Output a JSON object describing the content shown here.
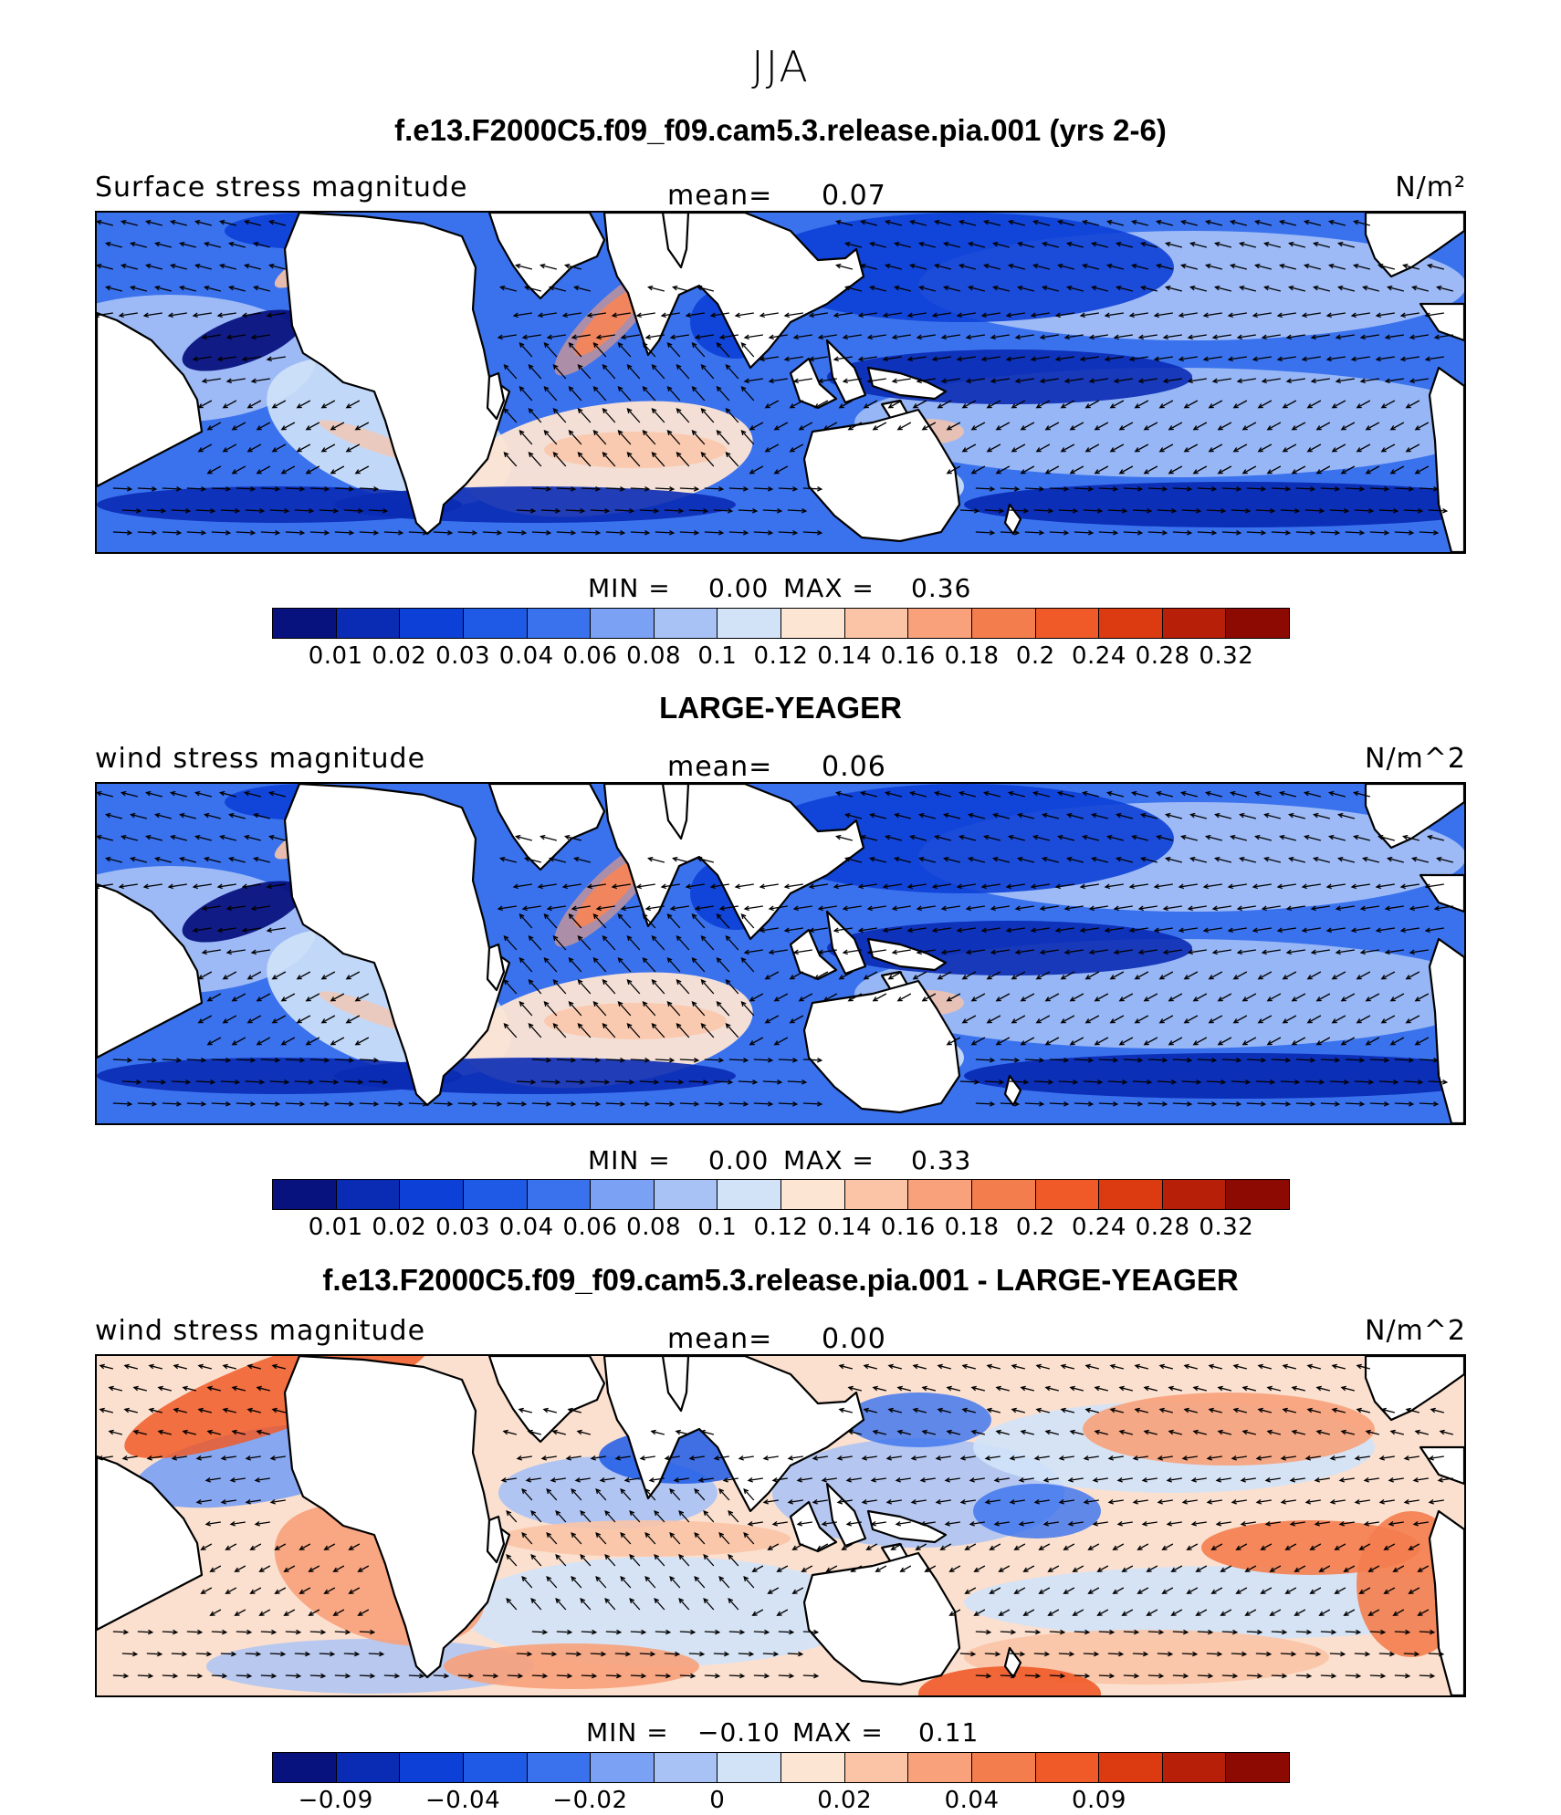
{
  "season": "JJA",
  "palette_stress": [
    "#08127f",
    "#0a2bb4",
    "#0d40d6",
    "#1f5ae6",
    "#3a72ee",
    "#7aa1f4",
    "#a8c2f6",
    "#d2e3f8",
    "#fde5d4",
    "#fbc4a6",
    "#f8a17a",
    "#f47d4e",
    "#ef5a28",
    "#dc3a10",
    "#b81f08",
    "#8c0a02"
  ],
  "palette_diff": [
    "#08127f",
    "#0a2bb4",
    "#0d40d6",
    "#1f5ae6",
    "#3a72ee",
    "#7aa1f4",
    "#a8c2f6",
    "#d2e3f8",
    "#fde5d4",
    "#fbc4a6",
    "#f8a17a",
    "#f47d4e",
    "#ef5a28",
    "#dc3a10",
    "#b81f08",
    "#8c0a02"
  ],
  "panels": [
    {
      "title": "f.e13.F2000C5.f09_f09.cam5.3.release.pia.001 (yrs 2-6)",
      "left": "Surface stress magnitude",
      "mean_label": "mean=",
      "mean_value": "0.07",
      "units": "N/m²",
      "min_label": "MIN =",
      "min_value": "0.00",
      "max_label": "MAX =",
      "max_value": "0.36",
      "ticks": [
        "0.01",
        "0.02",
        "0.03",
        "0.04",
        "0.06",
        "0.08",
        "0.1",
        "0.12",
        "0.14",
        "0.16",
        "0.18",
        "0.2",
        "0.24",
        "0.28",
        "0.32"
      ]
    },
    {
      "title": "LARGE-YEAGER",
      "left": "wind stress magnitude",
      "mean_label": "mean=",
      "mean_value": "0.06",
      "units": "N/m^2",
      "min_label": "MIN =",
      "min_value": "0.00",
      "max_label": "MAX =",
      "max_value": "0.33",
      "ticks": [
        "0.01",
        "0.02",
        "0.03",
        "0.04",
        "0.06",
        "0.08",
        "0.1",
        "0.12",
        "0.14",
        "0.16",
        "0.18",
        "0.2",
        "0.24",
        "0.28",
        "0.32"
      ]
    },
    {
      "title": "f.e13.F2000C5.f09_f09.cam5.3.release.pia.001 - LARGE-YEAGER",
      "left": "wind stress magnitude",
      "mean_label": "mean=",
      "mean_value": "0.00",
      "units": "N/m^2",
      "min_label": "MIN =",
      "min_value": "−0.10",
      "max_label": "MAX =",
      "max_value": "0.11",
      "ticks": [
        "−0.09",
        "",
        "−0.04",
        "",
        "−0.02",
        "",
        "0",
        "",
        "0.02",
        "",
        "0.04",
        "",
        "0.09",
        "",
        ""
      ]
    }
  ],
  "chart_data": [
    {
      "type": "heatmap",
      "title": "f.e13.F2000C5.f09_f09.cam5.3.release.pia.001 (yrs 2-6)",
      "variable": "Surface stress magnitude",
      "units": "N/m²",
      "mean": 0.07,
      "min": 0.0,
      "max": 0.36,
      "levels": [
        0.01,
        0.02,
        0.03,
        0.04,
        0.06,
        0.08,
        0.1,
        0.12,
        0.14,
        0.16,
        0.18,
        0.2,
        0.24,
        0.28,
        0.32
      ]
    },
    {
      "type": "heatmap",
      "title": "LARGE-YEAGER",
      "variable": "wind stress magnitude",
      "units": "N/m^2",
      "mean": 0.06,
      "min": 0.0,
      "max": 0.33,
      "levels": [
        0.01,
        0.02,
        0.03,
        0.04,
        0.06,
        0.08,
        0.1,
        0.12,
        0.14,
        0.16,
        0.18,
        0.2,
        0.24,
        0.28,
        0.32
      ]
    },
    {
      "type": "heatmap",
      "title": "f.e13.F2000C5.f09_f09.cam5.3.release.pia.001 - LARGE-YEAGER",
      "variable": "wind stress magnitude",
      "units": "N/m^2",
      "mean": 0.0,
      "min": -0.1,
      "max": 0.11,
      "levels": [
        -0.09,
        -0.04,
        -0.02,
        0,
        0.02,
        0.04,
        0.09
      ]
    }
  ]
}
